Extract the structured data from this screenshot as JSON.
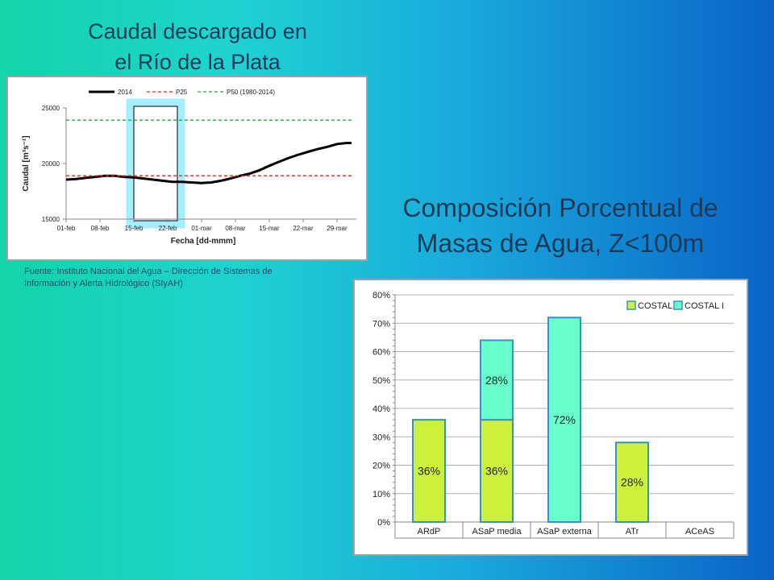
{
  "slide": {
    "title_left_line1": "Caudal descargado  en",
    "title_left_line2": "el Río de la Plata",
    "title_right_line1": "Composición Porcentual de",
    "title_right_line2": "Masas de Agua, Z<100m",
    "source_line1": "Fuente: Instituto Nacional del Agua – Dirección de Sistemas de",
    "source_line2": "Información y Alerta Hidrológico (SIyAH)"
  },
  "chart_data": [
    {
      "type": "line",
      "xlabel": "Fecha [dd-mmm]",
      "ylabel": "Caudal [m³s⁻¹]",
      "ylim": [
        15000,
        25000
      ],
      "yticks": [
        15000,
        20000,
        25000
      ],
      "xticks": [
        "01-feb",
        "08-feb",
        "15-feb",
        "22-feb",
        "01-mar",
        "08-mar",
        "15-mar",
        "22-mar",
        "29-mar"
      ],
      "xlim_days": [
        0,
        60
      ],
      "legend_position": "top",
      "series": [
        {
          "name": "2014",
          "color": "#000000",
          "style": "solid",
          "x": [
            0,
            2,
            4,
            6,
            8,
            10,
            12,
            14,
            16,
            18,
            20,
            21,
            22,
            24,
            26,
            28,
            30,
            32,
            34,
            36,
            38,
            40,
            42,
            44,
            46,
            48,
            50,
            52,
            54,
            56,
            58,
            59
          ],
          "y": [
            18550,
            18600,
            18700,
            18800,
            18900,
            18900,
            18800,
            18750,
            18650,
            18550,
            18450,
            18400,
            18350,
            18350,
            18300,
            18250,
            18300,
            18450,
            18650,
            18900,
            19100,
            19400,
            19800,
            20150,
            20500,
            20800,
            21050,
            21300,
            21500,
            21750,
            21850,
            21850
          ]
        },
        {
          "name": "P25",
          "color": "#ee2222",
          "style": "dashed",
          "x": [
            0,
            59
          ],
          "y": [
            18900,
            18900
          ]
        },
        {
          "name": "P50 (1980-2014)",
          "color": "#22aa55",
          "style": "dashed",
          "x": [
            0,
            59
          ],
          "y": [
            23900,
            23900
          ]
        }
      ],
      "highlight": {
        "x_from": 14,
        "x_to": 23,
        "color": "#5ae0ff"
      }
    },
    {
      "type": "bar",
      "stacked": true,
      "categories": [
        "ARdP",
        "ASaP media",
        "ASaP externa",
        "ATr",
        "ACeAS"
      ],
      "ylim": [
        0,
        80
      ],
      "yticks": [
        "0%",
        "10%",
        "20%",
        "30%",
        "40%",
        "50%",
        "60%",
        "70%",
        "80%"
      ],
      "legend_position": "top-right",
      "series": [
        {
          "name": "COSTAL II",
          "color": "#ccf03c",
          "values": [
            36,
            36,
            0,
            28,
            0
          ],
          "labels": [
            "36%",
            "36%",
            "",
            "28%",
            ""
          ]
        },
        {
          "name": "COSTAL I",
          "color": "#66ffcc",
          "values": [
            0,
            28,
            72,
            0,
            0
          ],
          "labels": [
            "",
            "28%",
            "72%",
            "",
            ""
          ]
        }
      ]
    }
  ]
}
